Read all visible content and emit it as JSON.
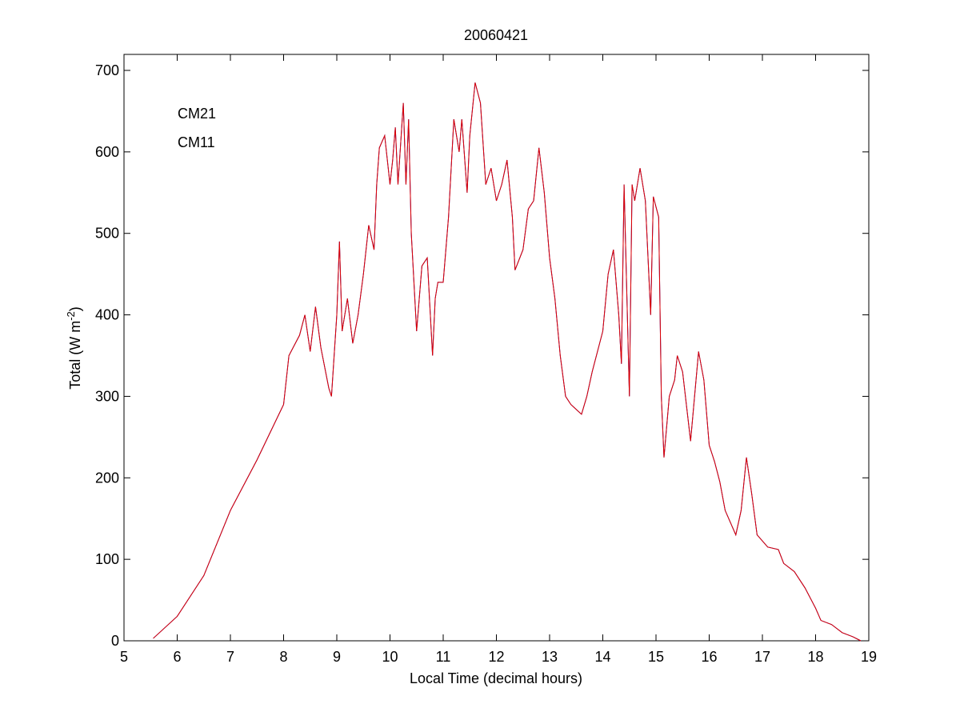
{
  "chart_data": {
    "type": "line",
    "title": "20060421",
    "x_label": "Local Time (decimal hours)",
    "y_label": {
      "text": "Total (W m",
      "superscript": "-2",
      "suffix": ")"
    },
    "x": [
      5.55,
      6.0,
      6.5,
      7.0,
      7.5,
      8.0,
      8.1,
      8.3,
      8.4,
      8.5,
      8.6,
      8.7,
      8.85,
      8.9,
      9.0,
      9.05,
      9.1,
      9.2,
      9.3,
      9.4,
      9.5,
      9.6,
      9.7,
      9.75,
      9.8,
      9.9,
      10.0,
      10.05,
      10.1,
      10.15,
      10.25,
      10.3,
      10.35,
      10.4,
      10.5,
      10.6,
      10.7,
      10.8,
      10.85,
      10.9,
      11.0,
      11.1,
      11.2,
      11.3,
      11.35,
      11.45,
      11.5,
      11.6,
      11.7,
      11.8,
      11.9,
      12.0,
      12.1,
      12.2,
      12.3,
      12.35,
      12.5,
      12.6,
      12.7,
      12.8,
      12.9,
      13.0,
      13.1,
      13.2,
      13.3,
      13.4,
      13.6,
      13.7,
      13.8,
      14.0,
      14.1,
      14.2,
      14.3,
      14.35,
      14.4,
      14.5,
      14.55,
      14.6,
      14.7,
      14.8,
      14.9,
      14.95,
      15.05,
      15.1,
      15.15,
      15.25,
      15.35,
      15.4,
      15.5,
      15.65,
      15.8,
      15.9,
      16.0,
      16.1,
      16.2,
      16.3,
      16.5,
      16.6,
      16.7,
      16.8,
      16.9,
      17.1,
      17.3,
      17.4,
      17.6,
      17.8,
      18.0,
      18.1,
      18.3,
      18.5,
      18.7,
      18.85
    ],
    "series": [
      {
        "name": "CM21",
        "color": "#0000b0",
        "values": [
          3,
          30,
          80,
          160,
          222,
          290,
          350,
          375,
          400,
          355,
          410,
          360,
          310,
          300,
          400,
          490,
          380,
          420,
          365,
          400,
          450,
          510,
          480,
          560,
          605,
          620,
          560,
          590,
          630,
          560,
          660,
          560,
          640,
          500,
          380,
          460,
          470,
          350,
          420,
          440,
          440,
          520,
          640,
          600,
          640,
          550,
          620,
          685,
          660,
          560,
          580,
          540,
          560,
          590,
          520,
          455,
          480,
          530,
          540,
          605,
          550,
          470,
          420,
          350,
          300,
          290,
          278,
          300,
          330,
          380,
          450,
          480,
          400,
          340,
          560,
          300,
          560,
          540,
          580,
          540,
          400,
          545,
          520,
          300,
          225,
          300,
          320,
          350,
          330,
          245,
          355,
          320,
          240,
          220,
          195,
          160,
          130,
          160,
          225,
          180,
          130,
          115,
          112,
          95,
          85,
          65,
          40,
          25,
          20,
          10,
          5,
          0
        ]
      },
      {
        "name": "CM11",
        "color": "#e00000",
        "values": [
          3,
          30,
          80,
          160,
          222,
          290,
          350,
          375,
          400,
          355,
          410,
          360,
          310,
          300,
          400,
          490,
          380,
          420,
          365,
          400,
          450,
          510,
          480,
          560,
          605,
          620,
          560,
          590,
          630,
          560,
          660,
          560,
          640,
          500,
          380,
          460,
          470,
          350,
          420,
          440,
          440,
          520,
          640,
          600,
          640,
          550,
          620,
          685,
          660,
          560,
          580,
          540,
          560,
          590,
          520,
          455,
          480,
          530,
          540,
          605,
          550,
          470,
          420,
          350,
          300,
          290,
          278,
          300,
          330,
          380,
          450,
          480,
          400,
          340,
          560,
          300,
          560,
          540,
          580,
          540,
          400,
          545,
          520,
          300,
          225,
          300,
          320,
          350,
          330,
          245,
          355,
          320,
          240,
          220,
          195,
          160,
          130,
          160,
          225,
          180,
          130,
          115,
          112,
          95,
          85,
          65,
          40,
          25,
          20,
          10,
          5,
          0
        ]
      }
    ],
    "xlim": [
      5,
      19
    ],
    "xticks": [
      5,
      6,
      7,
      8,
      9,
      10,
      11,
      12,
      13,
      14,
      15,
      16,
      17,
      18,
      19
    ],
    "ylim": [
      0,
      700
    ],
    "yticks": [
      0,
      100,
      200,
      300,
      400,
      500,
      600,
      700
    ],
    "legend": "upper left"
  }
}
